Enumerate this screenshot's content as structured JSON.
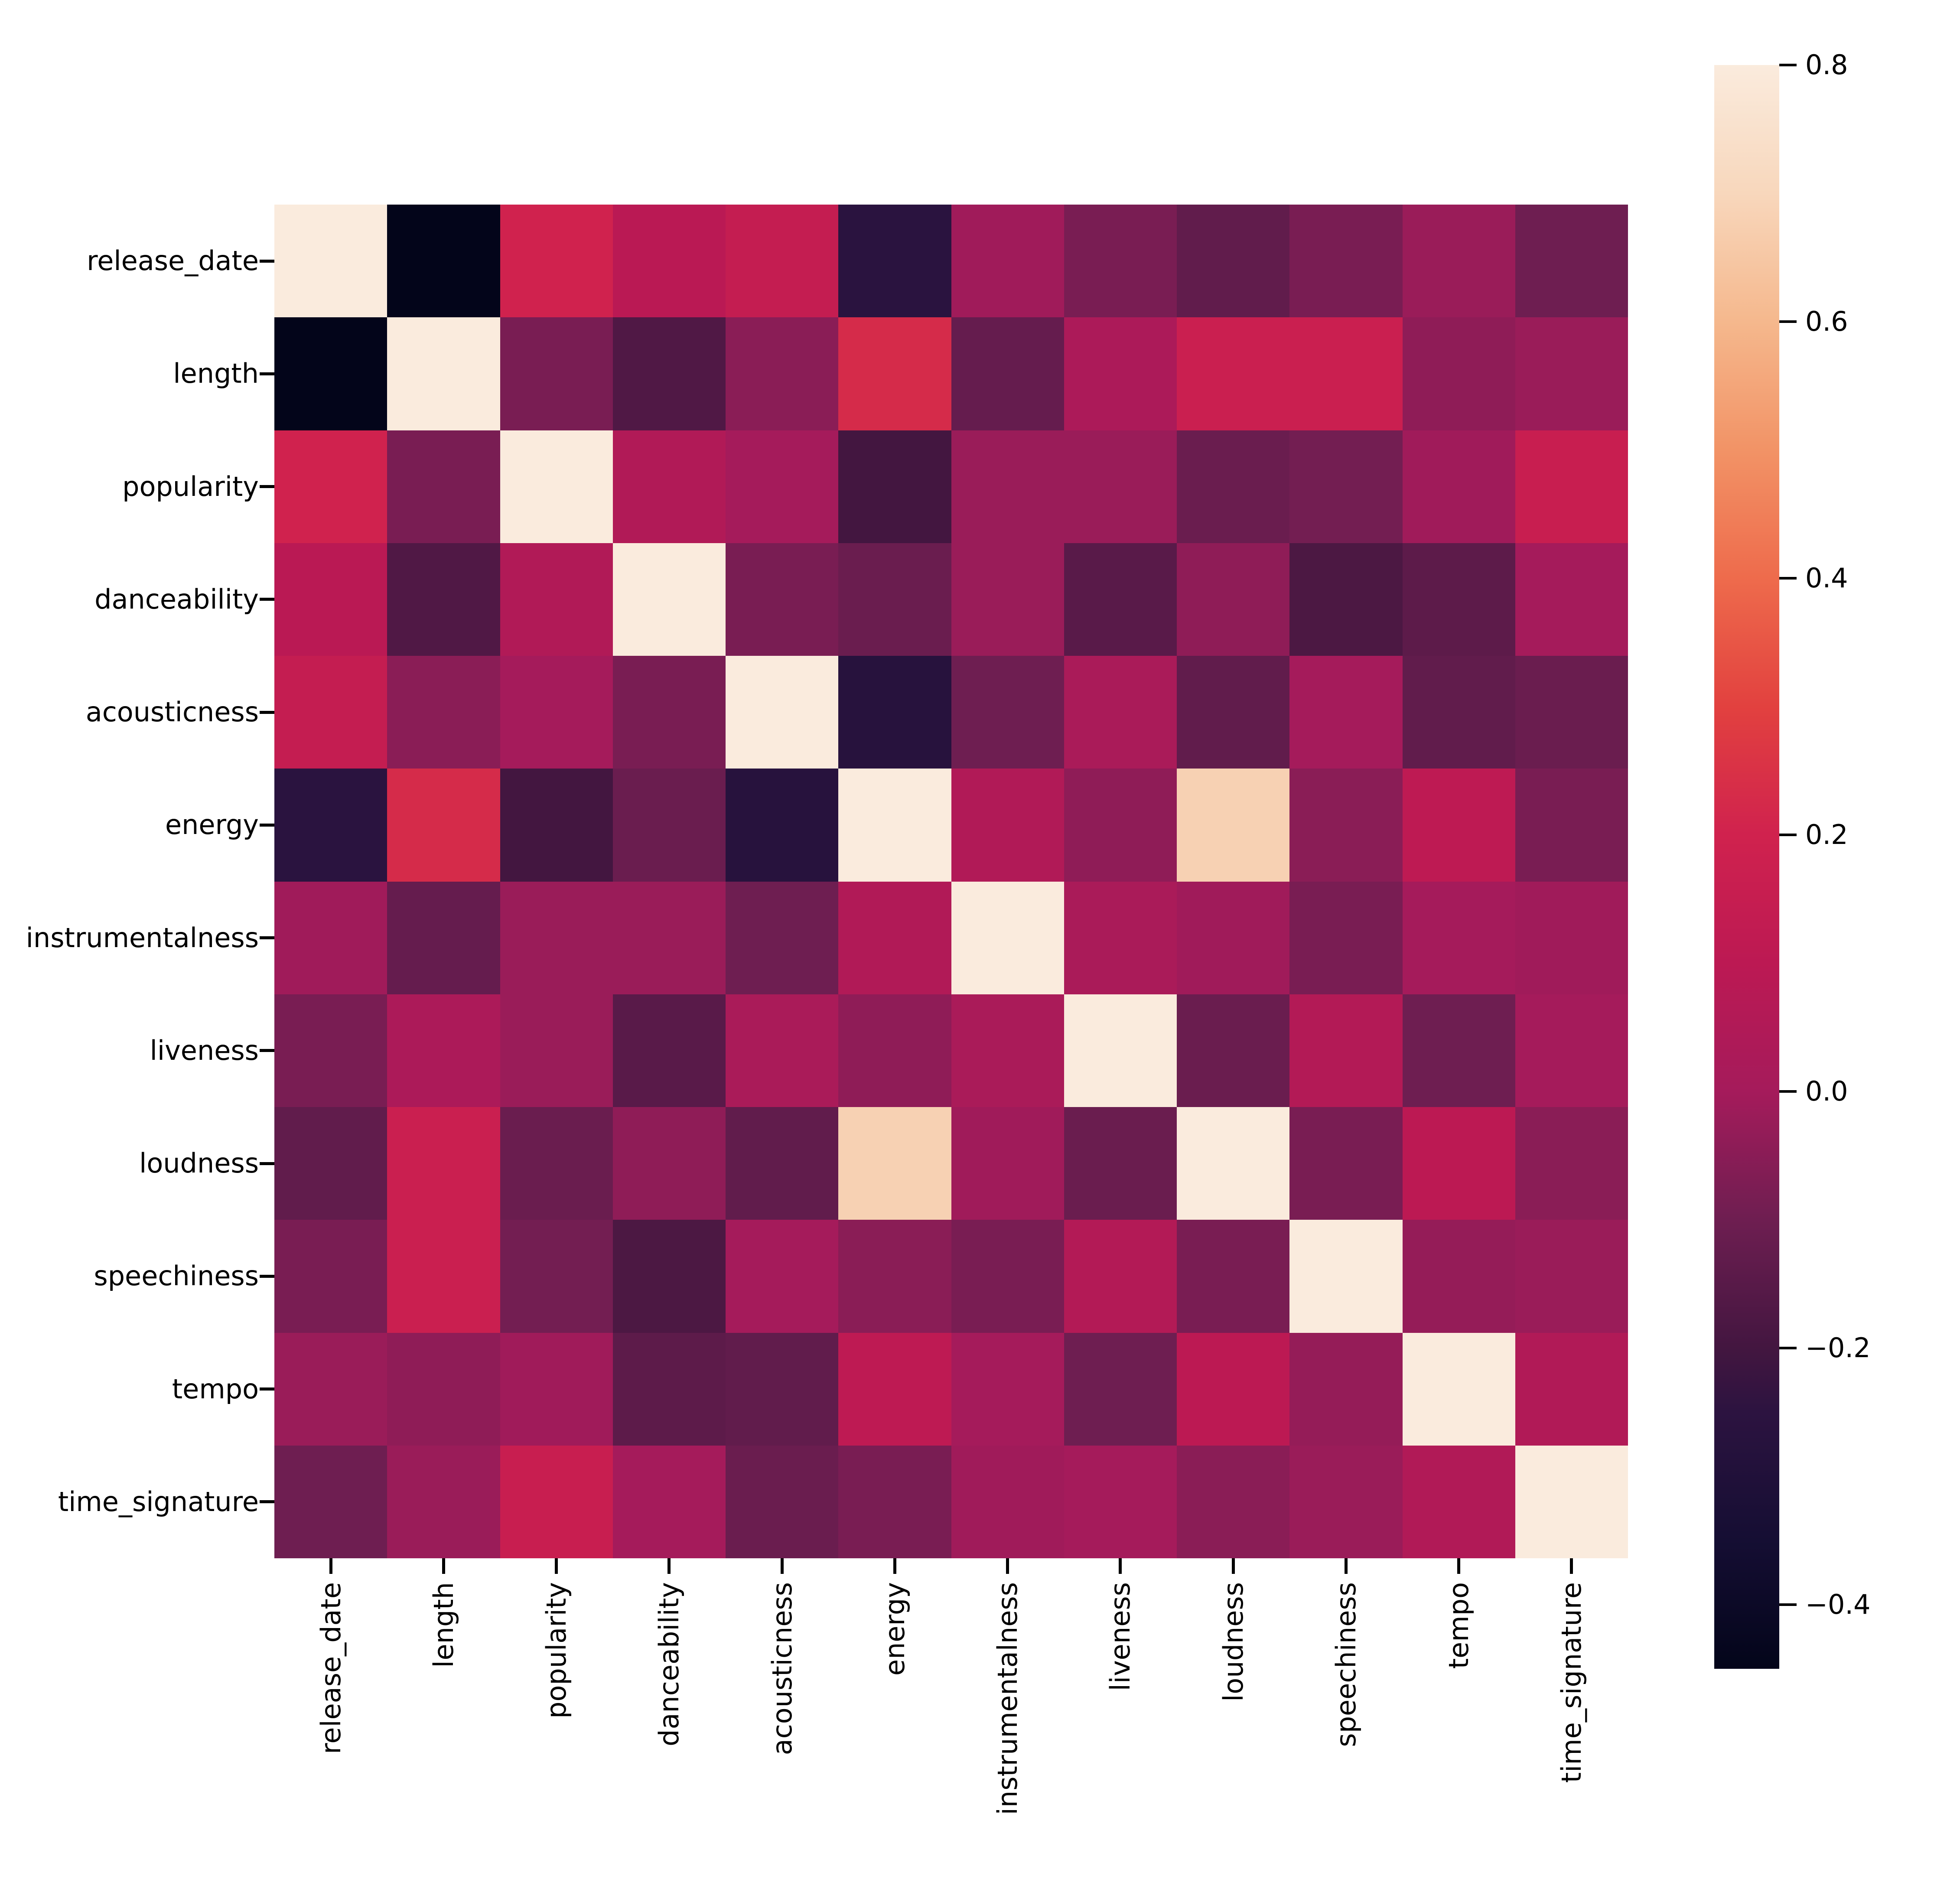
{
  "figure": {
    "background": "#ffffff",
    "plot_type": "correlation-heatmap"
  },
  "chart_data": {
    "type": "heatmap",
    "title": "",
    "xlabel": "",
    "ylabel": "",
    "grid": false,
    "legend_position": "colorbar-right",
    "colormap": "rocket",
    "vmin": -0.45,
    "vmax": 0.8,
    "variables": [
      "release_date",
      "length",
      "popularity",
      "danceability",
      "acousticness",
      "energy",
      "instrumentalness",
      "liveness",
      "loudness",
      "speechiness",
      "tempo",
      "time_signature"
    ],
    "matrix": [
      [
        1.0,
        -0.46,
        0.2,
        0.09,
        0.14,
        -0.26,
        -0.01,
        -0.08,
        -0.13,
        -0.08,
        -0.02,
        -0.1
      ],
      [
        -0.46,
        1.0,
        -0.08,
        -0.17,
        -0.05,
        0.23,
        -0.12,
        0.03,
        0.17,
        0.17,
        -0.04,
        -0.02
      ],
      [
        0.2,
        -0.08,
        1.0,
        0.05,
        0.0,
        -0.2,
        -0.02,
        -0.02,
        -0.11,
        -0.09,
        -0.01,
        0.16
      ],
      [
        0.09,
        -0.17,
        0.05,
        1.0,
        -0.08,
        -0.11,
        -0.02,
        -0.15,
        -0.04,
        -0.18,
        -0.14,
        0.0
      ],
      [
        0.14,
        -0.05,
        0.0,
        -0.08,
        1.0,
        -0.27,
        -0.1,
        0.02,
        -0.13,
        0.0,
        -0.13,
        -0.11
      ],
      [
        -0.26,
        0.23,
        -0.2,
        -0.11,
        -0.27,
        1.0,
        0.05,
        -0.04,
        0.68,
        -0.05,
        0.11,
        -0.08
      ],
      [
        -0.01,
        -0.12,
        -0.02,
        -0.02,
        -0.1,
        0.05,
        1.0,
        0.02,
        -0.01,
        -0.08,
        0.0,
        -0.01
      ],
      [
        -0.08,
        0.03,
        -0.02,
        -0.15,
        0.02,
        -0.04,
        0.02,
        1.0,
        -0.11,
        0.06,
        -0.1,
        0.0
      ],
      [
        -0.13,
        0.17,
        -0.11,
        -0.04,
        -0.13,
        0.68,
        -0.01,
        -0.11,
        1.0,
        -0.08,
        0.1,
        -0.05
      ],
      [
        -0.08,
        0.17,
        -0.09,
        -0.18,
        0.0,
        -0.05,
        -0.08,
        0.06,
        -0.08,
        1.0,
        -0.03,
        -0.02
      ],
      [
        -0.02,
        -0.04,
        -0.01,
        -0.14,
        -0.13,
        0.11,
        0.0,
        -0.1,
        0.1,
        -0.03,
        1.0,
        0.05
      ],
      [
        -0.1,
        -0.02,
        0.16,
        0.0,
        -0.11,
        -0.08,
        -0.01,
        0.0,
        -0.05,
        -0.02,
        0.05,
        1.0
      ]
    ],
    "colormap_anchors": [
      {
        "t": 0.0,
        "c": "#03051A"
      },
      {
        "t": 0.08,
        "c": "#150E33"
      },
      {
        "t": 0.16,
        "c": "#2C1340"
      },
      {
        "t": 0.2,
        "c": "#431640"
      },
      {
        "t": 0.28,
        "c": "#6E1E51"
      },
      {
        "t": 0.36,
        "c": "#A51B5B"
      },
      {
        "t": 0.44,
        "c": "#BC1953"
      },
      {
        "t": 0.52,
        "c": "#D0224E"
      },
      {
        "t": 0.6,
        "c": "#E2413F"
      },
      {
        "t": 0.68,
        "c": "#EE6B4C"
      },
      {
        "t": 0.76,
        "c": "#F29366"
      },
      {
        "t": 0.84,
        "c": "#F5B88D"
      },
      {
        "t": 0.92,
        "c": "#F8D7BC"
      },
      {
        "t": 1.0,
        "c": "#FAEBDD"
      }
    ],
    "colorbar_ticks": [
      {
        "value": 0.8,
        "label": "0.8"
      },
      {
        "value": 0.6,
        "label": "0.6"
      },
      {
        "value": 0.4,
        "label": "0.4"
      },
      {
        "value": 0.2,
        "label": "0.2"
      },
      {
        "value": 0.0,
        "label": "0.0"
      },
      {
        "value": -0.2,
        "label": "−0.2"
      },
      {
        "value": -0.4,
        "label": "−0.4"
      }
    ]
  }
}
